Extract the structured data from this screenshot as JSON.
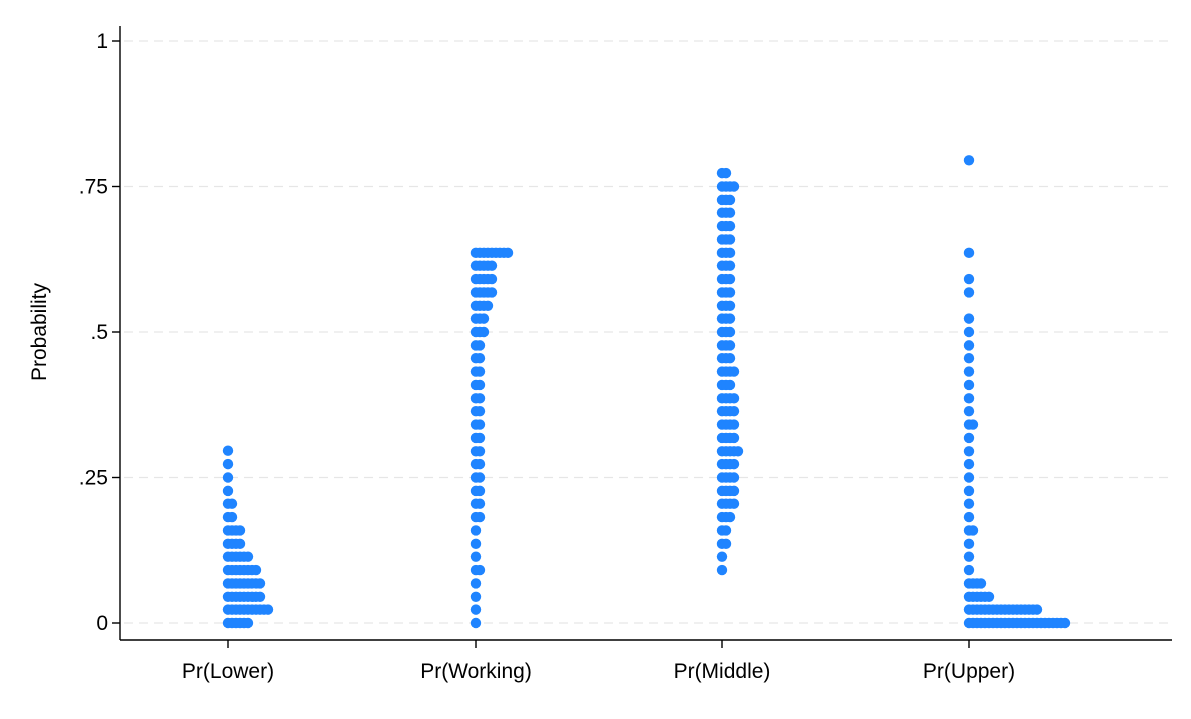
{
  "colors": {
    "marker": "#1f84ff",
    "axis": "#000000",
    "grid": "#e6e6e6"
  },
  "chart_data": {
    "type": "scatter",
    "title": "",
    "xlabel": "",
    "ylabel": "Probability",
    "ylim": [
      0,
      1
    ],
    "yticks": [
      {
        "value": 0,
        "label": "0"
      },
      {
        "value": 0.25,
        "label": ".25"
      },
      {
        "value": 0.5,
        "label": ".5"
      },
      {
        "value": 0.75,
        "label": ".75"
      },
      {
        "value": 1,
        "label": "1"
      }
    ],
    "grid": true,
    "note": "Stripplot of predicted probabilities; each bin lists [probability, number of observations stacked horizontally].",
    "categories": [
      "Pr(Lower)",
      "Pr(Working)",
      "Pr(Middle)",
      "Pr(Upper)"
    ],
    "series": [
      {
        "name": "Pr(Lower)",
        "bins": [
          [
            0.296,
            1
          ],
          [
            0.273,
            1
          ],
          [
            0.25,
            1
          ],
          [
            0.227,
            1
          ],
          [
            0.205,
            2
          ],
          [
            0.182,
            2
          ],
          [
            0.159,
            4
          ],
          [
            0.136,
            4
          ],
          [
            0.114,
            6
          ],
          [
            0.091,
            8
          ],
          [
            0.068,
            9
          ],
          [
            0.045,
            9
          ],
          [
            0.023,
            11
          ],
          [
            0.0,
            6
          ]
        ]
      },
      {
        "name": "Pr(Working)",
        "bins": [
          [
            0.636,
            9
          ],
          [
            0.614,
            5
          ],
          [
            0.591,
            5
          ],
          [
            0.568,
            5
          ],
          [
            0.545,
            4
          ],
          [
            0.523,
            3
          ],
          [
            0.5,
            3
          ],
          [
            0.477,
            2
          ],
          [
            0.455,
            2
          ],
          [
            0.432,
            2
          ],
          [
            0.409,
            2
          ],
          [
            0.386,
            2
          ],
          [
            0.364,
            2
          ],
          [
            0.341,
            2
          ],
          [
            0.318,
            2
          ],
          [
            0.295,
            2
          ],
          [
            0.273,
            2
          ],
          [
            0.25,
            2
          ],
          [
            0.227,
            2
          ],
          [
            0.205,
            2
          ],
          [
            0.182,
            2
          ],
          [
            0.159,
            1
          ],
          [
            0.136,
            1
          ],
          [
            0.114,
            1
          ],
          [
            0.091,
            2
          ],
          [
            0.068,
            1
          ],
          [
            0.045,
            1
          ],
          [
            0.023,
            1
          ],
          [
            0.0,
            1
          ]
        ]
      },
      {
        "name": "Pr(Middle)",
        "bins": [
          [
            0.773,
            2
          ],
          [
            0.75,
            4
          ],
          [
            0.727,
            3
          ],
          [
            0.705,
            3
          ],
          [
            0.682,
            3
          ],
          [
            0.659,
            3
          ],
          [
            0.636,
            3
          ],
          [
            0.614,
            3
          ],
          [
            0.591,
            3
          ],
          [
            0.568,
            3
          ],
          [
            0.545,
            3
          ],
          [
            0.523,
            3
          ],
          [
            0.5,
            3
          ],
          [
            0.477,
            3
          ],
          [
            0.455,
            3
          ],
          [
            0.432,
            4
          ],
          [
            0.409,
            3
          ],
          [
            0.386,
            4
          ],
          [
            0.364,
            4
          ],
          [
            0.341,
            4
          ],
          [
            0.318,
            4
          ],
          [
            0.295,
            5
          ],
          [
            0.273,
            4
          ],
          [
            0.25,
            4
          ],
          [
            0.227,
            4
          ],
          [
            0.205,
            4
          ],
          [
            0.182,
            3
          ],
          [
            0.159,
            2
          ],
          [
            0.136,
            2
          ],
          [
            0.114,
            1
          ],
          [
            0.091,
            1
          ]
        ]
      },
      {
        "name": "Pr(Upper)",
        "bins": [
          [
            0.795,
            1
          ],
          [
            0.636,
            1
          ],
          [
            0.591,
            1
          ],
          [
            0.568,
            1
          ],
          [
            0.523,
            1
          ],
          [
            0.5,
            1
          ],
          [
            0.477,
            1
          ],
          [
            0.455,
            1
          ],
          [
            0.432,
            1
          ],
          [
            0.409,
            1
          ],
          [
            0.386,
            1
          ],
          [
            0.364,
            1
          ],
          [
            0.341,
            2
          ],
          [
            0.318,
            1
          ],
          [
            0.295,
            1
          ],
          [
            0.273,
            1
          ],
          [
            0.25,
            1
          ],
          [
            0.227,
            1
          ],
          [
            0.205,
            1
          ],
          [
            0.182,
            1
          ],
          [
            0.159,
            2
          ],
          [
            0.136,
            1
          ],
          [
            0.114,
            1
          ],
          [
            0.091,
            1
          ],
          [
            0.068,
            4
          ],
          [
            0.045,
            6
          ],
          [
            0.023,
            18
          ],
          [
            0.0,
            25
          ]
        ]
      }
    ]
  }
}
